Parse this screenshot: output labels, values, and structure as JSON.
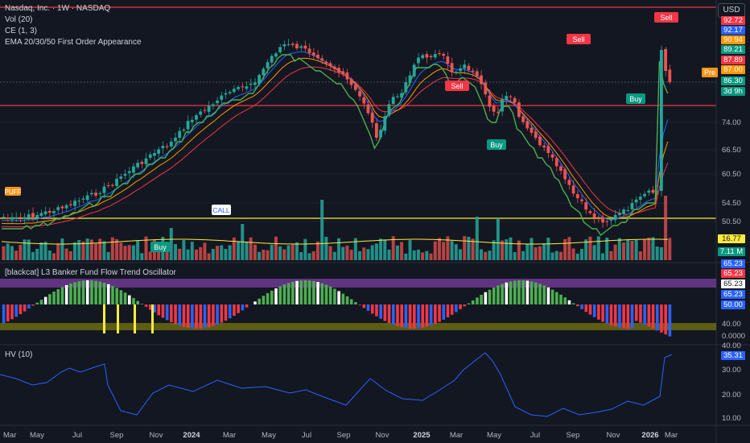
{
  "header": {
    "symbol_line": "Nasdaq, Inc. · 1W · NASDAQ",
    "vol_label": "Vol (20)",
    "ce_label": "CE (1, 3)",
    "ema_label": "EMA 20/30/50 First Order Appearance",
    "currency_button": "USD"
  },
  "price_axis": {
    "labels": [
      "74.00",
      "66.50",
      "60.50",
      "54.50",
      "50.50"
    ],
    "badges": [
      {
        "text": "92.72",
        "color": "#f23645"
      },
      {
        "text": "92.17",
        "color": "#2962ff"
      },
      {
        "text": "90.94",
        "color": "#ff9800"
      },
      {
        "text": "89.21",
        "color": "#089981"
      },
      {
        "text": "87.89",
        "color": "#f23645"
      },
      {
        "text": "87.00",
        "color": "#ff9800"
      },
      {
        "text": "86.30",
        "color": "#089981"
      },
      {
        "text": "3d 9h",
        "color": "#089981"
      }
    ],
    "pre_label": "Pre",
    "vol_badges": [
      {
        "text": "16.77 M",
        "color": "#ffeb3b",
        "fg": "#131722"
      },
      {
        "text": "7.11 M",
        "color": "#089981",
        "fg": "#ffffff"
      }
    ]
  },
  "signals": {
    "sell": "Sell",
    "buy": "Buy",
    "call": "CALL",
    "puff": "PUFF"
  },
  "oscillator": {
    "title": "[blackcat] L3 Banker Fund Flow Trend Oscillator",
    "axis_labels": [
      {
        "text": "65.23",
        "color": "#2962ff"
      },
      {
        "text": "65.23",
        "color": "#f23645"
      },
      {
        "text": "65.23",
        "color": "#131722",
        "bg": "#ffffff"
      },
      {
        "text": "65.23",
        "color": "#2962ff"
      },
      {
        "text": "50.00",
        "color": "#2962ff"
      }
    ],
    "plain_labels": [
      "40.00",
      "0.0000"
    ]
  },
  "hv": {
    "title": "HV (10)",
    "badge": "35.31",
    "axis_labels": [
      "40.00",
      "30.00",
      "20.00",
      "10.00"
    ]
  },
  "time_axis": [
    "Mar",
    "May",
    "Jul",
    "Sep",
    "Nov",
    "2024",
    "Mar",
    "May",
    "Jul",
    "Sep",
    "Nov",
    "2025",
    "Mar",
    "May",
    "Jul",
    "Sep",
    "Nov",
    "2026",
    "Mar"
  ],
  "colors": {
    "up": "#26a69a",
    "down": "#ef5350",
    "bg": "#131722",
    "hline": "#f23645",
    "yellow": "#ffeb3b"
  }
}
